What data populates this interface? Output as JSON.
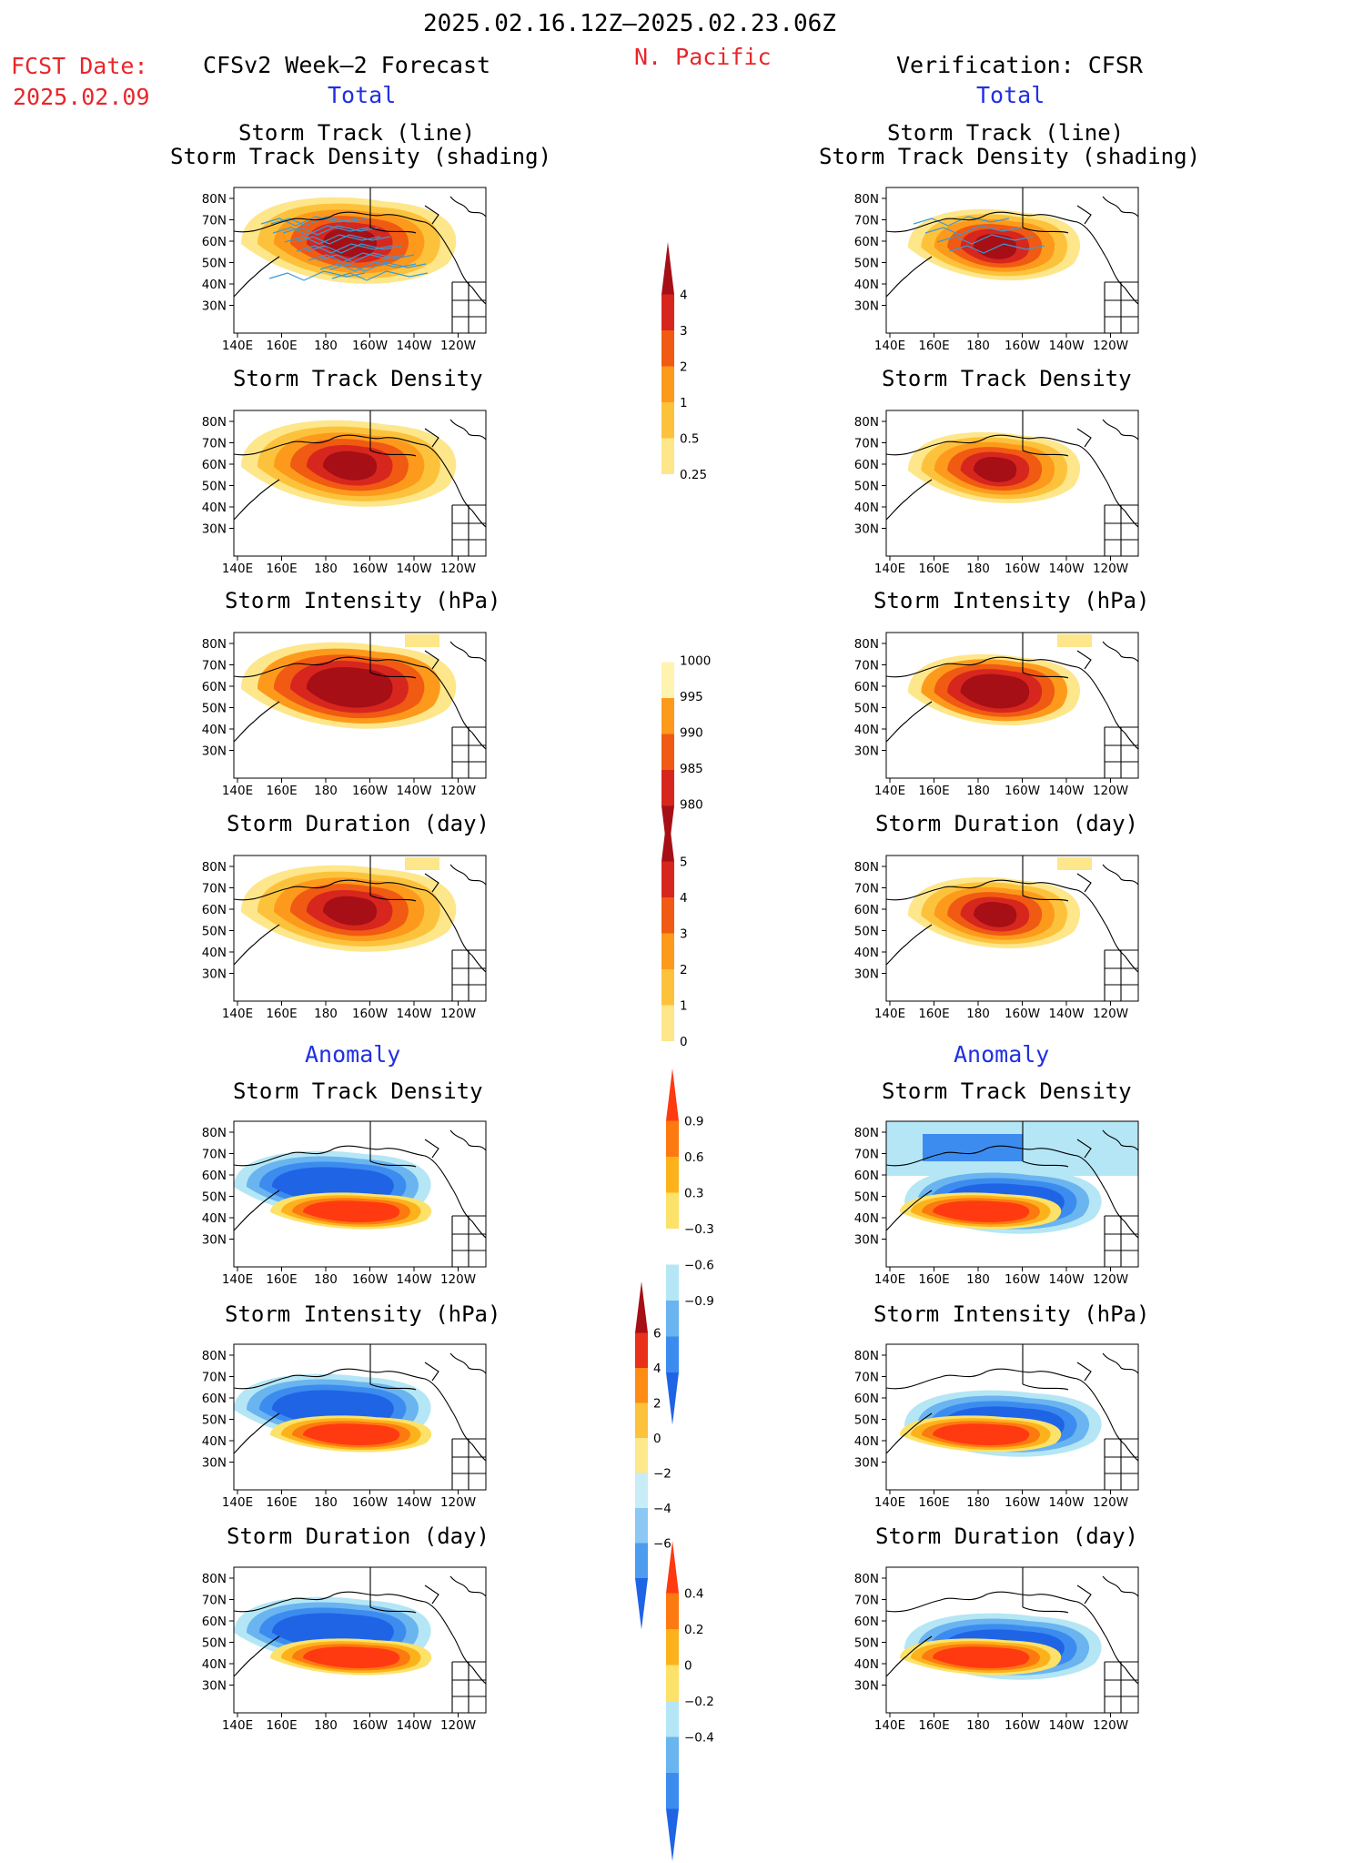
{
  "header": {
    "period": "2025.02.16.12Z–2025.02.23.06Z",
    "region": "N. Pacific",
    "fcst_label": "FCST Date:",
    "fcst_date": "2025.02.09",
    "left_title": "CFSv2 Week–2 Forecast",
    "right_title": "Verification: CFSR",
    "total_label": "Total",
    "anomaly_label": "Anomaly"
  },
  "panel_titles": {
    "track_line": "Storm Track (line)",
    "track_density_shading": "Storm Track Density (shading)",
    "density": "Storm Track Density",
    "intensity": "Storm Intensity (hPa)",
    "duration": "Storm Duration (day)"
  },
  "axes": {
    "lat_labels": [
      "80N",
      "70N",
      "60N",
      "50N",
      "40N",
      "30N"
    ],
    "lon_labels": [
      "140E",
      "160E",
      "180",
      "160W",
      "140W",
      "120W"
    ]
  },
  "colorbars": {
    "total_density": {
      "labels": [
        "4",
        "3",
        "2",
        "1",
        "0.5",
        "0.25"
      ],
      "colors": [
        "#a50f15",
        "#d7261e",
        "#f05a12",
        "#fd9a1c",
        "#fdc23c",
        "#fee68a",
        "#ffffff"
      ]
    },
    "total_intensity": {
      "labels": [
        "1000",
        "995",
        "990",
        "985",
        "980"
      ],
      "colors": [
        "#ffffff",
        "#fff3b0",
        "#fd9a1c",
        "#f05a12",
        "#d7261e",
        "#a50f15"
      ]
    },
    "total_duration": {
      "labels": [
        "5",
        "4",
        "3",
        "2",
        "1",
        "0"
      ],
      "colors": [
        "#a50f15",
        "#d7261e",
        "#f05a12",
        "#fd9a1c",
        "#fdc23c",
        "#fee68a",
        "#ffffff"
      ]
    },
    "anom_density": {
      "labels": [
        "0.9",
        "0.6",
        "0.3",
        "−0.3",
        "−0.6",
        "−0.9"
      ],
      "colors": [
        "#ff3a10",
        "#fd7a10",
        "#fdb21c",
        "#fde26a",
        "#ffffff",
        "#b4e6f5",
        "#6ab4f0",
        "#3c8cf0",
        "#2064e6"
      ]
    },
    "anom_intensity": {
      "labels": [
        "6",
        "4",
        "2",
        "0",
        "−2",
        "−4",
        "−6"
      ],
      "colors": [
        "#a50f15",
        "#e8301a",
        "#fd8c14",
        "#fdc23c",
        "#fde88c",
        "#c8ecf8",
        "#8cc8f4",
        "#4c9cf0",
        "#2064e6"
      ]
    },
    "anom_duration": {
      "labels": [
        "0.4",
        "0.2",
        "0",
        "−0.2",
        "−0.4"
      ],
      "colors": [
        "#ff3a10",
        "#fd7a10",
        "#fdb21c",
        "#fde26a",
        "#b4e6f5",
        "#6ab4f0",
        "#3c8cf0",
        "#2064e6"
      ]
    }
  }
}
